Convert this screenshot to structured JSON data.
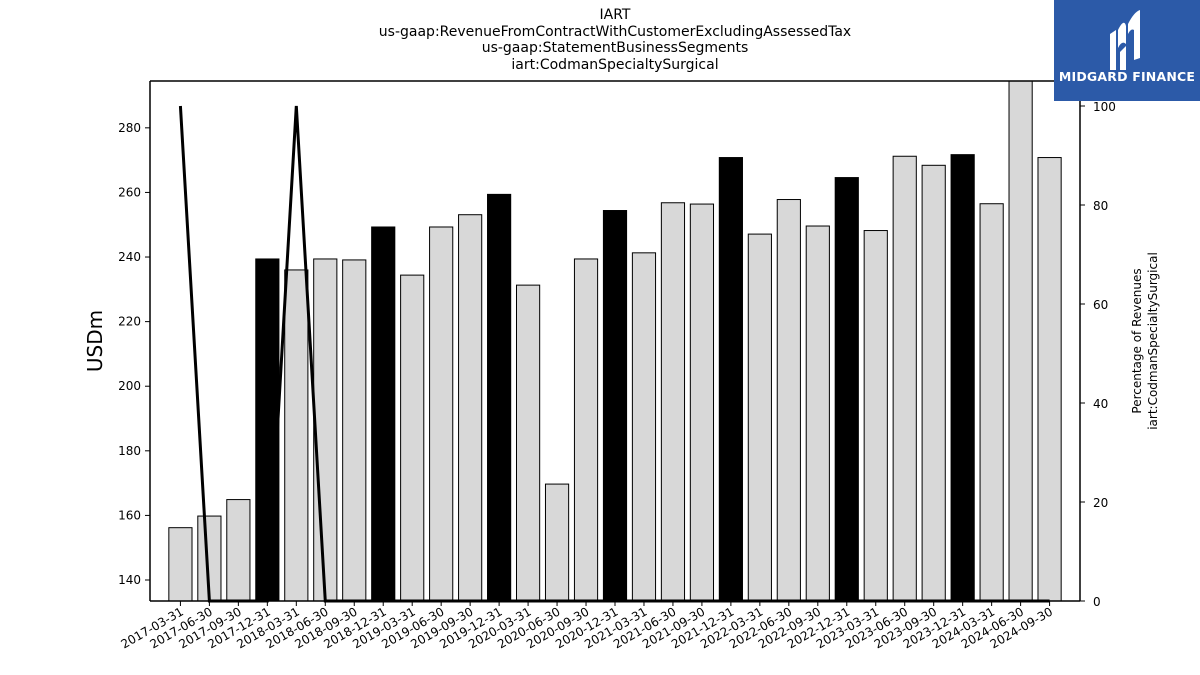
{
  "title": {
    "line1": "IART",
    "line2": "us-gaap:RevenueFromContractWithCustomerExcludingAssessedTax",
    "line3": "us-gaap:StatementBusinessSegments",
    "line4": "iart:CodmanSpecialtySurgical"
  },
  "logo": {
    "text": "MIDGARD FINANCE",
    "background": "#2c5aa8",
    "icon": "midgard-logo-icon"
  },
  "chart_data": {
    "type": "bar",
    "categories": [
      "2017-03-31",
      "2017-06-30",
      "2017-09-30",
      "2017-12-31",
      "2018-03-31",
      "2018-06-30",
      "2018-09-30",
      "2018-12-31",
      "2019-03-31",
      "2019-06-30",
      "2019-09-30",
      "2019-12-31",
      "2020-03-31",
      "2020-06-30",
      "2020-09-30",
      "2020-12-31",
      "2021-03-31",
      "2021-06-30",
      "2021-09-30",
      "2021-12-31",
      "2022-03-31",
      "2022-06-30",
      "2022-09-30",
      "2022-12-31",
      "2023-03-31",
      "2023-06-30",
      "2023-09-30",
      "2023-12-31",
      "2024-03-31",
      "2024-06-30",
      "2024-09-30"
    ],
    "values": [
      156.2,
      159.8,
      164.9,
      239.4,
      236.0,
      239.4,
      239.1,
      249.3,
      234.4,
      249.3,
      253.1,
      259.4,
      231.3,
      169.7,
      239.4,
      254.4,
      241.3,
      256.8,
      256.4,
      270.8,
      247.1,
      257.8,
      249.6,
      264.6,
      248.2,
      271.2,
      268.4,
      271.7,
      256.5,
      295.0,
      270.8
    ],
    "highlight": [
      false,
      false,
      false,
      true,
      false,
      false,
      false,
      true,
      false,
      false,
      false,
      true,
      false,
      false,
      false,
      true,
      false,
      false,
      false,
      true,
      false,
      false,
      false,
      true,
      false,
      false,
      false,
      true,
      false,
      false,
      false
    ],
    "colors": {
      "bar": "#d8d8d8",
      "highlight": "#000000",
      "line": "#000000"
    },
    "ylabel": "USDm",
    "ylim": [
      133.5,
      294.5
    ],
    "yticks": [
      140,
      160,
      180,
      200,
      220,
      240,
      260,
      280
    ],
    "y2label_line1": "Percentage of Revenues",
    "y2label_line2": "iart:CodmanSpecialtySurgical",
    "y2lim": [
      0,
      100
    ],
    "y2ticks": [
      0,
      20,
      40,
      60,
      80,
      100
    ],
    "line_series": {
      "values": [
        100,
        0,
        0,
        0,
        100,
        0,
        0,
        0,
        0,
        0,
        0,
        0,
        0,
        0,
        0,
        0,
        0,
        0,
        0,
        0,
        0,
        0,
        0,
        0,
        0,
        0,
        0,
        0,
        0,
        0,
        0
      ]
    }
  }
}
